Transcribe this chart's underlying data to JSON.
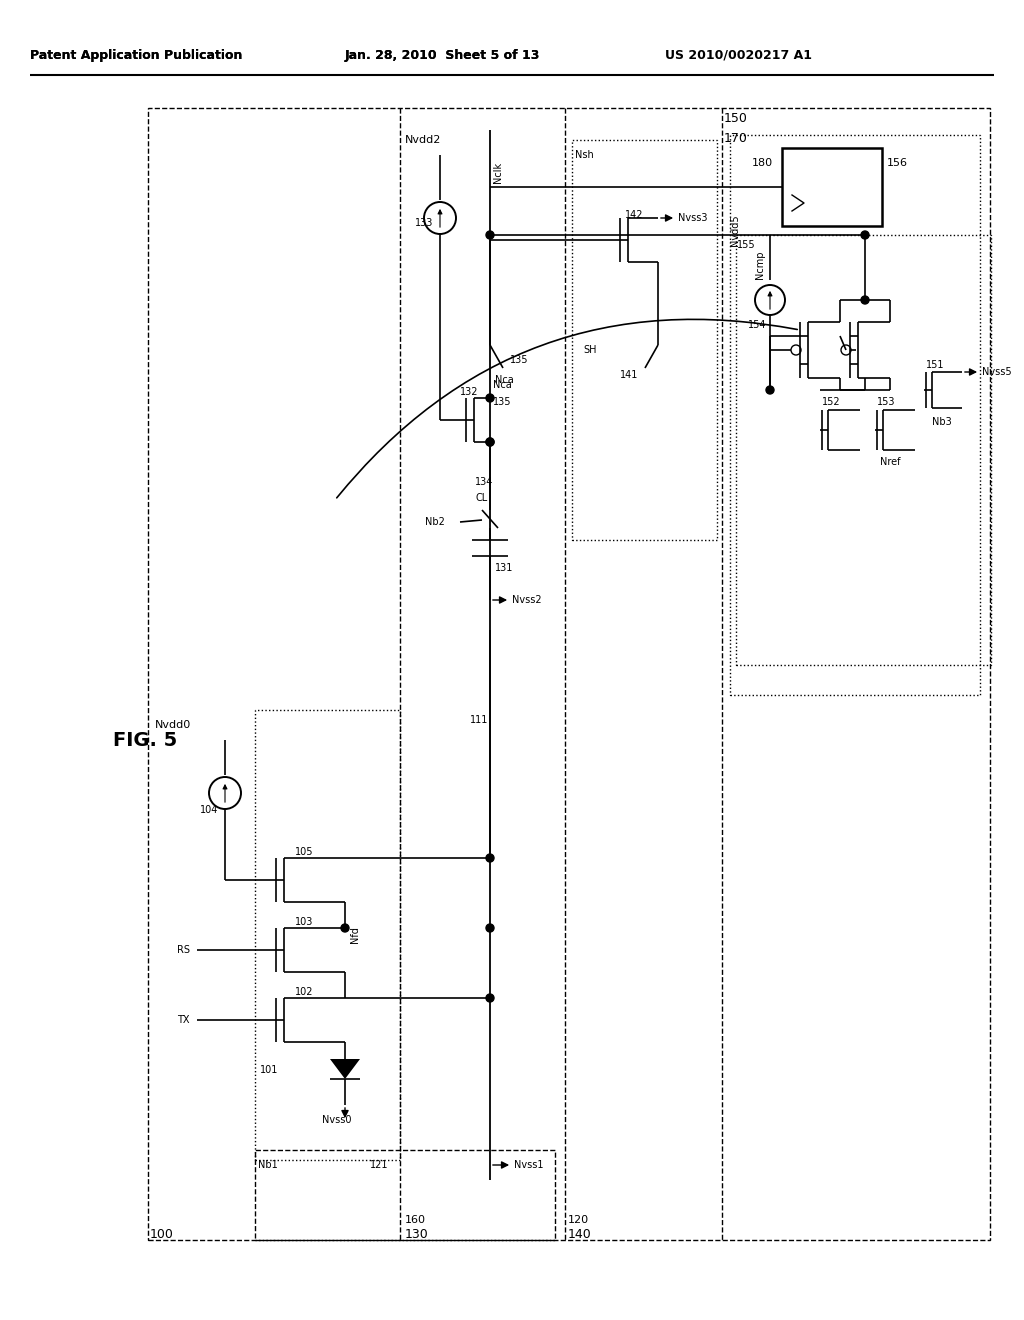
{
  "title_left": "Patent Application Publication",
  "title_mid": "Jan. 28, 2010  Sheet 5 of 13",
  "title_right": "US 2010/0020217 A1",
  "fig_label": "FIG. 5",
  "bg": "#ffffff"
}
